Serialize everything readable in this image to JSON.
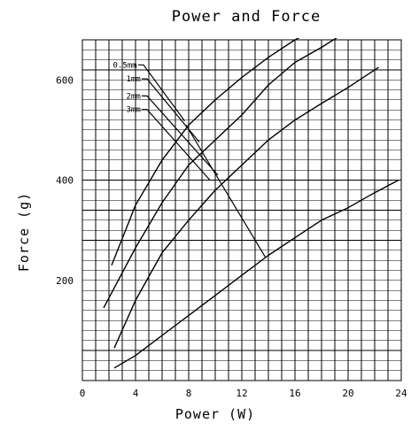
{
  "chart_data": {
    "type": "line",
    "title": "Power and Force",
    "xlabel": "Power (W)",
    "ylabel": "Force (g)",
    "xlim": [
      0,
      24
    ],
    "ylim": [
      0,
      680
    ],
    "x_ticks": [
      0,
      4,
      8,
      12,
      16,
      20,
      24
    ],
    "y_ticks": [
      200,
      400,
      600
    ],
    "x_tick_labels": [
      "0",
      "4",
      "8",
      "12",
      "16",
      "20",
      "24"
    ],
    "y_tick_labels": [
      "200",
      "400",
      "600"
    ],
    "grid": true,
    "colors": {
      "line": "#000000",
      "grid": "#000000",
      "background": "#ffffff"
    },
    "series": [
      {
        "name": "0.5mm",
        "x": [
          2.2,
          4,
          6,
          8,
          10,
          12,
          14,
          16,
          17.5
        ],
        "y": [
          230,
          350,
          440,
          510,
          560,
          605,
          645,
          680,
          700
        ]
      },
      {
        "name": "1mm",
        "x": [
          1.6,
          4,
          6,
          8,
          10,
          12,
          14,
          16,
          18,
          19.5
        ],
        "y": [
          145,
          265,
          355,
          430,
          480,
          530,
          590,
          635,
          665,
          690
        ]
      },
      {
        "name": "2mm",
        "x": [
          2.4,
          4,
          6,
          8,
          10,
          12,
          14,
          16,
          18,
          20,
          22.3
        ],
        "y": [
          65,
          160,
          255,
          320,
          380,
          430,
          480,
          520,
          553,
          585,
          625
        ]
      },
      {
        "name": "3mm",
        "x": [
          2.4,
          4,
          6,
          8,
          10,
          12,
          14,
          16,
          18,
          20,
          22,
          23.8
        ],
        "y": [
          25,
          50,
          90,
          130,
          170,
          210,
          250,
          285,
          320,
          345,
          375,
          400
        ]
      }
    ],
    "annotations": [
      {
        "series": "0.5mm",
        "from": [
          2.3,
          630
        ],
        "to": [
          7.7,
          518
        ]
      },
      {
        "series": "1mm",
        "from": [
          3.3,
          602
        ],
        "to": [
          8.8,
          476
        ]
      },
      {
        "series": "2mm",
        "from": [
          3.3,
          568
        ],
        "to": [
          10.2,
          410
        ]
      },
      {
        "series": "3mm",
        "from": [
          3.3,
          541
        ],
        "to": [
          9.6,
          400
        ]
      }
    ],
    "overlay_line": {
      "x": [
        7.8,
        13.8
      ],
      "y": [
        510,
        245
      ]
    }
  }
}
